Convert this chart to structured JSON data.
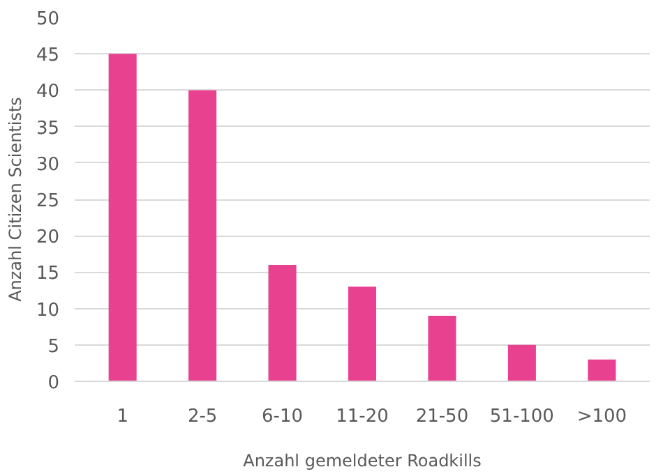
{
  "chart_data": {
    "type": "bar",
    "xlabel": "Anzahl gemeldeter Roadkills",
    "ylabel": "Anzahl Citizen Scientists",
    "categories": [
      "1",
      "2-5",
      "6-10",
      "11-20",
      "21-50",
      "51-100",
      ">100"
    ],
    "values": [
      45,
      40,
      16,
      13,
      9,
      5,
      3
    ],
    "color": "#e8418f",
    "ylim": [
      0,
      50
    ],
    "yticks": [
      0,
      5,
      10,
      15,
      20,
      25,
      30,
      35,
      40,
      45,
      50
    ],
    "grid": "y"
  }
}
